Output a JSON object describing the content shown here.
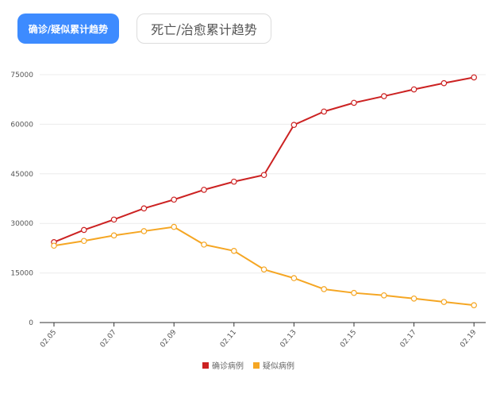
{
  "tabs": {
    "active_label": "确诊/疑似累计趋势",
    "inactive_label": "死亡/治愈累计趋势"
  },
  "colors": {
    "confirmed": "#cc2222",
    "suspected": "#f5a623",
    "active_tab": "#3d8bff"
  },
  "chart_data": {
    "type": "line",
    "categories": [
      "02.05",
      "02.06",
      "02.07",
      "02.08",
      "02.09",
      "02.10",
      "02.11",
      "02.12",
      "02.13",
      "02.14",
      "02.15",
      "02.16",
      "02.17",
      "02.18",
      "02.19"
    ],
    "x_tick_labels": [
      "02.05",
      "02.07",
      "02.09",
      "02.11",
      "02.13",
      "02.15",
      "02.17",
      "02.19"
    ],
    "y_ticks": [
      "0",
      "15000",
      "30000",
      "45000",
      "60000",
      "75000"
    ],
    "ylim": [
      0,
      75000
    ],
    "grid": true,
    "legend_position": "bottom",
    "series": [
      {
        "name": "确诊病例",
        "color": "#cc2222",
        "values": [
          24324,
          28018,
          31161,
          34546,
          37198,
          40171,
          42638,
          44653,
          59804,
          63851,
          66492,
          68500,
          70548,
          72436,
          74185
        ]
      },
      {
        "name": "疑似病例",
        "color": "#f5a623",
        "values": [
          23260,
          24702,
          26359,
          27657,
          28942,
          23589,
          21675,
          16067,
          13435,
          10109,
          8969,
          8228,
          7264,
          6242,
          5248
        ]
      }
    ]
  }
}
